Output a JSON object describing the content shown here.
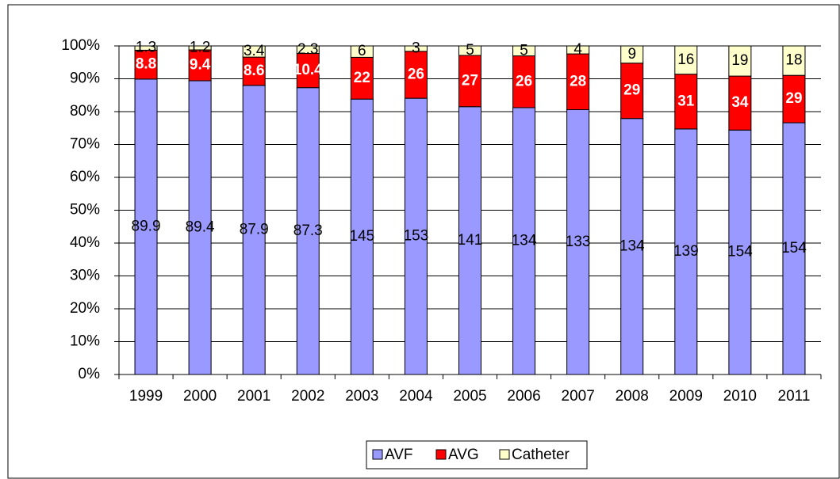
{
  "chart_data": {
    "type": "stacked_percent",
    "categories": [
      "1999",
      "2000",
      "2001",
      "2002",
      "2003",
      "2004",
      "2005",
      "2006",
      "2007",
      "2008",
      "2009",
      "2010",
      "2011"
    ],
    "series": [
      {
        "name": "AVF",
        "color": "#9999ff",
        "values": [
          89.9,
          89.4,
          87.9,
          87.3,
          145,
          153,
          141,
          134,
          133,
          134,
          139,
          154,
          154
        ]
      },
      {
        "name": "AVG",
        "color": "#ff0000",
        "values": [
          8.8,
          9.4,
          8.6,
          10.4,
          22,
          26,
          27,
          26,
          28,
          29,
          31,
          34,
          29
        ]
      },
      {
        "name": "Catheter",
        "color": "#ffffcc",
        "values": [
          1.3,
          1.2,
          3.4,
          2.3,
          6,
          3,
          5,
          5,
          4,
          9,
          16,
          19,
          18
        ]
      }
    ],
    "ylim": [
      0,
      100
    ],
    "yticks": [
      {
        "value": 0,
        "label": "0%"
      },
      {
        "value": 10,
        "label": "10%"
      },
      {
        "value": 20,
        "label": "20%"
      },
      {
        "value": 30,
        "label": "30%"
      },
      {
        "value": 40,
        "label": "40%"
      },
      {
        "value": 50,
        "label": "50%"
      },
      {
        "value": 60,
        "label": "60%"
      },
      {
        "value": 70,
        "label": "70%"
      },
      {
        "value": 80,
        "label": "80%"
      },
      {
        "value": 90,
        "label": "90%"
      },
      {
        "value": 100,
        "label": "100%"
      }
    ],
    "grid": true
  }
}
